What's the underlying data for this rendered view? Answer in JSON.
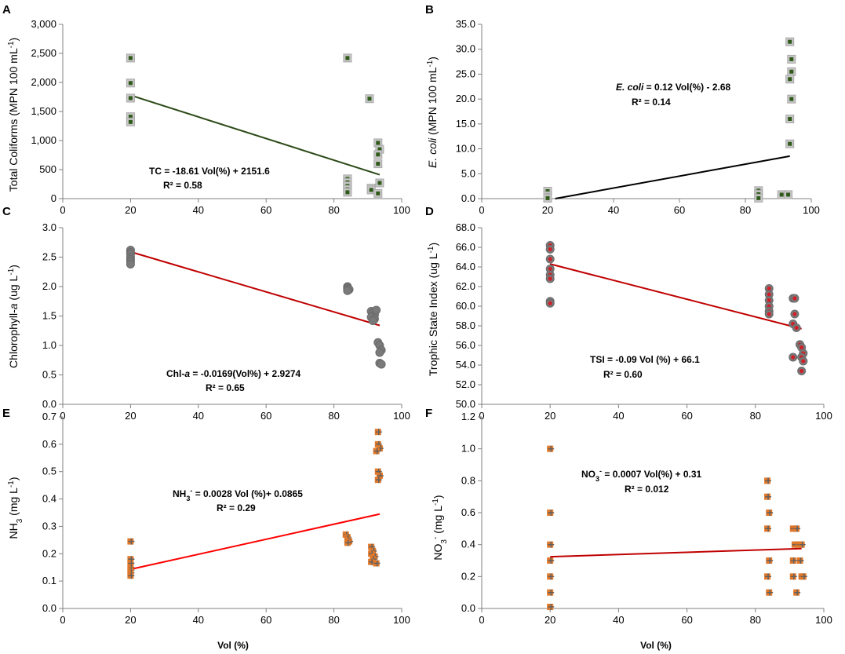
{
  "figure": {
    "background": "#ffffff",
    "axis_color": "#808080",
    "text_color": "#000000"
  },
  "chart_data": [
    {
      "id": "A",
      "type": "scatter",
      "panel_label": "A",
      "ylabel": "Total Coliforms (MPN 100 mL",
      "ylabel_sup": "-1",
      "ylabel_tail": ")",
      "xlabel": "",
      "xlim": [
        0,
        100
      ],
      "ylim": [
        0,
        3000
      ],
      "xticks": [
        0,
        20,
        40,
        60,
        80,
        100
      ],
      "yticks": [
        0,
        500,
        1000,
        1500,
        2000,
        2500,
        3000
      ],
      "ytick_labels": [
        "0",
        "500",
        "1,000",
        "1,500",
        "2,000",
        "2,500",
        "3,000"
      ],
      "marker": "square-green",
      "points": [
        [
          20,
          2420
        ],
        [
          20,
          1990
        ],
        [
          20,
          1730
        ],
        [
          20,
          1410
        ],
        [
          20,
          1320
        ],
        [
          84,
          2420
        ],
        [
          84,
          340
        ],
        [
          84,
          280
        ],
        [
          84,
          220
        ],
        [
          84,
          160
        ],
        [
          84,
          110
        ],
        [
          90.5,
          1720
        ],
        [
          91,
          180
        ],
        [
          91,
          150
        ],
        [
          93,
          960
        ],
        [
          93.5,
          850
        ],
        [
          93,
          760
        ],
        [
          93,
          600
        ],
        [
          93.5,
          270
        ],
        [
          93,
          90
        ]
      ],
      "trend": {
        "x": [
          20,
          93.5
        ],
        "y": [
          1779,
          411
        ],
        "color": "#2c4a17"
      },
      "equation": "TC   = -18.61 Vol(%) + 2151.6",
      "r2": "R² = 0.58"
    },
    {
      "id": "B",
      "type": "scatter",
      "panel_label": "B",
      "ylabel": "E. coli (MPN 100 mL",
      "ylabel_sup": "-1",
      "ylabel_tail": ")",
      "ylabel_italic_prefix": "E. coli",
      "xlabel": "",
      "xlim": [
        0,
        100
      ],
      "ylim": [
        0,
        35
      ],
      "xticks": [
        0,
        20,
        40,
        60,
        80,
        100
      ],
      "yticks": [
        0,
        5,
        10,
        15,
        20,
        25,
        30,
        35
      ],
      "ytick_labels": [
        "0.0",
        "5.0",
        "10.0",
        "15.0",
        "20.0",
        "25.0",
        "30.0",
        "35.0"
      ],
      "marker": "square-green",
      "points": [
        [
          20,
          1.5
        ],
        [
          20,
          0.6
        ],
        [
          20,
          0.1
        ],
        [
          84,
          1.6
        ],
        [
          84,
          0.9
        ],
        [
          84,
          0.1
        ],
        [
          91,
          0.8
        ],
        [
          93,
          0.8
        ],
        [
          93.5,
          31.5
        ],
        [
          94,
          28
        ],
        [
          94,
          25.5
        ],
        [
          93.5,
          24
        ],
        [
          94,
          20
        ],
        [
          93.5,
          16
        ],
        [
          93.5,
          11
        ]
      ],
      "trend": {
        "x": [
          22.3,
          93.5
        ],
        "y": [
          0,
          8.54
        ],
        "color": "#000000"
      },
      "equation": "E. coli = 0.12 Vol(%) - 2.68",
      "equation_italic_prefix": "E. coli",
      "r2": "R² = 0.14"
    },
    {
      "id": "C",
      "type": "scatter",
      "panel_label": "C",
      "ylabel": "Chlorophyll-a (ug L",
      "ylabel_sup": "-1",
      "ylabel_tail": ")",
      "xlabel": "",
      "xlim": [
        0,
        100
      ],
      "ylim": [
        0,
        3.0
      ],
      "xticks": [
        0,
        20,
        40,
        60,
        80,
        100
      ],
      "yticks": [
        0,
        0.5,
        1.0,
        1.5,
        2.0,
        2.5,
        3.0
      ],
      "ytick_labels": [
        "0.0",
        "0.5",
        "1.0",
        "1.5",
        "2.0",
        "2.5",
        "3.0"
      ],
      "marker": "circle-gray",
      "points": [
        [
          20,
          2.62
        ],
        [
          20,
          2.58
        ],
        [
          20,
          2.55
        ],
        [
          20,
          2.5
        ],
        [
          20,
          2.46
        ],
        [
          20,
          2.42
        ],
        [
          20,
          2.38
        ],
        [
          84,
          2.0
        ],
        [
          84,
          1.98
        ],
        [
          84,
          1.96
        ],
        [
          84.5,
          1.95
        ],
        [
          84,
          1.93
        ],
        [
          91,
          1.58
        ],
        [
          91.5,
          1.55
        ],
        [
          92,
          1.52
        ],
        [
          91,
          1.48
        ],
        [
          92,
          1.45
        ],
        [
          91.5,
          1.42
        ],
        [
          92.5,
          1.6
        ],
        [
          93,
          1.05
        ],
        [
          93.5,
          1.0
        ],
        [
          94,
          0.92
        ],
        [
          93.5,
          0.88
        ],
        [
          93.5,
          0.7
        ],
        [
          94,
          0.68
        ]
      ],
      "trend": {
        "x": [
          20,
          93.5
        ],
        "y": [
          2.59,
          1.34
        ],
        "color": "#c00000"
      },
      "equation": "Chl-a = -0.0169(Vol%) + 2.9274",
      "r2": "R² = 0.65"
    },
    {
      "id": "D",
      "type": "scatter",
      "panel_label": "D",
      "ylabel": "Trophic State Index (ug L",
      "ylabel_sup": "-1",
      "ylabel_tail": ")",
      "xlabel": "",
      "xlim": [
        0,
        100
      ],
      "ylim": [
        50,
        68
      ],
      "xticks": [
        0,
        20,
        40,
        60,
        80,
        100
      ],
      "yticks": [
        50,
        52,
        54,
        56,
        58,
        60,
        62,
        64,
        66,
        68
      ],
      "ytick_labels": [
        "50.0",
        "52.0",
        "54.0",
        "56.0",
        "58.0",
        "60.0",
        "62.0",
        "64.0",
        "66.0",
        "68.0"
      ],
      "marker": "circle-red",
      "points": [
        [
          20,
          66.2
        ],
        [
          20,
          65.8
        ],
        [
          20,
          64.8
        ],
        [
          20,
          63.8
        ],
        [
          20,
          63.2
        ],
        [
          20,
          62.8
        ],
        [
          20,
          60.5
        ],
        [
          20,
          60.3
        ],
        [
          84,
          61.8
        ],
        [
          84,
          61.2
        ],
        [
          84,
          60.6
        ],
        [
          84,
          60.0
        ],
        [
          84,
          59.5
        ],
        [
          84,
          59.2
        ],
        [
          91,
          60.8
        ],
        [
          91.5,
          60.8
        ],
        [
          91.5,
          59.2
        ],
        [
          91,
          58.2
        ],
        [
          92,
          57.8
        ],
        [
          91,
          54.8
        ],
        [
          93,
          56.1
        ],
        [
          93.5,
          55.8
        ],
        [
          94,
          55.2
        ],
        [
          93.5,
          54.8
        ],
        [
          94,
          54.4
        ],
        [
          93.5,
          53.4
        ]
      ],
      "trend": {
        "x": [
          20,
          93.5
        ],
        "y": [
          64.3,
          57.7
        ],
        "color": "#c00000"
      },
      "equation": "TSI  = -0.09 Vol (%) + 66.1",
      "r2": "R² = 0.60"
    },
    {
      "id": "E",
      "type": "scatter",
      "panel_label": "E",
      "ylabel": "NH",
      "ylabel_sub": "3",
      "ylabel_tail": " (mg L",
      "ylabel_sup": "-1",
      "ylabel_tail2": ")",
      "xlabel": "Vol (%)",
      "xlim": [
        0,
        100
      ],
      "ylim": [
        0,
        0.7
      ],
      "xticks": [
        0,
        20,
        40,
        60,
        80,
        100
      ],
      "yticks": [
        0,
        0.1,
        0.2,
        0.3,
        0.4,
        0.5,
        0.6,
        0.7
      ],
      "ytick_labels": [
        "0.0",
        "0.1",
        "0.2",
        "0.3",
        "0.4",
        "0.5",
        "0.6",
        "0.7"
      ],
      "marker": "square-orange",
      "points": [
        [
          20,
          0.245
        ],
        [
          20,
          0.18
        ],
        [
          20,
          0.165
        ],
        [
          20,
          0.15
        ],
        [
          20,
          0.14
        ],
        [
          20,
          0.13
        ],
        [
          20,
          0.12
        ],
        [
          83.5,
          0.27
        ],
        [
          84,
          0.26
        ],
        [
          84,
          0.25
        ],
        [
          84.5,
          0.245
        ],
        [
          84,
          0.24
        ],
        [
          91,
          0.225
        ],
        [
          91.5,
          0.21
        ],
        [
          91,
          0.2
        ],
        [
          92,
          0.19
        ],
        [
          91.5,
          0.18
        ],
        [
          91,
          0.17
        ],
        [
          92.5,
          0.165
        ],
        [
          93,
          0.645
        ],
        [
          93,
          0.6
        ],
        [
          93.5,
          0.585
        ],
        [
          92.5,
          0.575
        ],
        [
          93,
          0.5
        ],
        [
          93.5,
          0.485
        ],
        [
          93,
          0.47
        ]
      ],
      "trend": {
        "x": [
          20,
          93.5
        ],
        "y": [
          0.143,
          0.345
        ],
        "color": "#ff0000"
      },
      "equation": "NH",
      "equation_sub": "3",
      "equation_sup": "-",
      "equation_tail": " = 0.0028 Vol (%)+ 0.0865",
      "r2": "R² = 0.29"
    },
    {
      "id": "F",
      "type": "scatter",
      "panel_label": "F",
      "ylabel": "NO",
      "ylabel_sub": "3",
      "ylabel_sup_pre": "-",
      "ylabel_tail": " (mg L",
      "ylabel_sup": "-1",
      "ylabel_tail2": ")",
      "xlabel": "Vol (%)",
      "xlim": [
        0,
        100
      ],
      "ylim": [
        0,
        1.2
      ],
      "xticks": [
        0,
        20,
        40,
        60,
        80,
        100
      ],
      "yticks": [
        0,
        0.2,
        0.4,
        0.6,
        0.8,
        1.0,
        1.2
      ],
      "ytick_labels": [
        "0.0",
        "0.2",
        "0.4",
        "0.6",
        "0.8",
        "1.0",
        "1.2"
      ],
      "marker": "square-orange",
      "points": [
        [
          20,
          1.0
        ],
        [
          20,
          0.6
        ],
        [
          20,
          0.4
        ],
        [
          20,
          0.3
        ],
        [
          20,
          0.2
        ],
        [
          20,
          0.1
        ],
        [
          20,
          0.01
        ],
        [
          83.5,
          0.8
        ],
        [
          83.5,
          0.7
        ],
        [
          84,
          0.6
        ],
        [
          83.5,
          0.5
        ],
        [
          84,
          0.3
        ],
        [
          83.5,
          0.2
        ],
        [
          84,
          0.1
        ],
        [
          91,
          0.5
        ],
        [
          91.5,
          0.4
        ],
        [
          91,
          0.3
        ],
        [
          91,
          0.2
        ],
        [
          92,
          0.5
        ],
        [
          92.5,
          0.4
        ],
        [
          92,
          0.1
        ],
        [
          93,
          0.4
        ],
        [
          93.5,
          0.4
        ],
        [
          93,
          0.3
        ],
        [
          93.5,
          0.2
        ],
        [
          94,
          0.2
        ]
      ],
      "trend": {
        "x": [
          20,
          93.5
        ],
        "y": [
          0.324,
          0.375
        ],
        "color": "#c00000"
      },
      "equation": "NO",
      "equation_sub": "3",
      "equation_sup": "-",
      "equation_tail": " = 0.0007 Vol(%) + 0.31",
      "r2": "R² = 0.012"
    }
  ]
}
